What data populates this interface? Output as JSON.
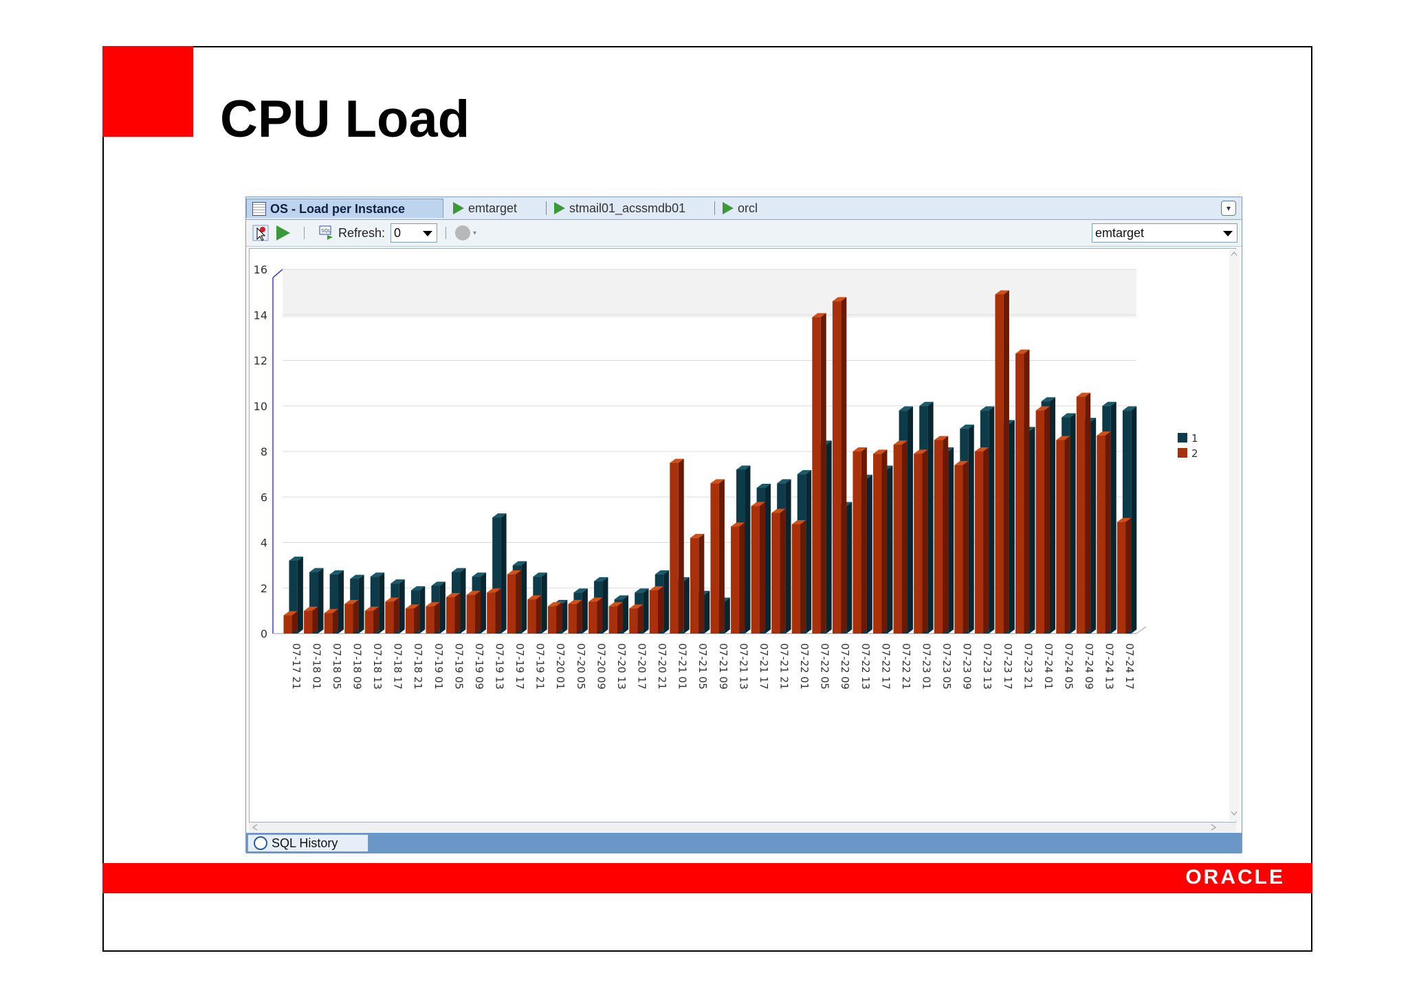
{
  "slide": {
    "title": "CPU Load",
    "brand": "ORACLE"
  },
  "tabs": [
    {
      "label": "OS - Load per Instance",
      "icon": "grid-icon",
      "active": true
    },
    {
      "label": "emtarget",
      "icon": "play-icon",
      "active": false
    },
    {
      "label": "stmail01_acssmdb01",
      "icon": "play-icon",
      "active": false
    },
    {
      "label": "orcl",
      "icon": "play-icon",
      "active": false
    }
  ],
  "toolbar": {
    "refresh_label": "Refresh:",
    "refresh_value": "0",
    "target_value": "emtarget"
  },
  "bottom_tab": {
    "label": "SQL History"
  },
  "colors": {
    "series1": "#0d3b4a",
    "series2": "#a8300a",
    "accent": "#ff0000"
  },
  "chart_data": {
    "type": "bar",
    "ylim": [
      0,
      16
    ],
    "yticks": [
      0,
      2,
      4,
      6,
      8,
      10,
      12,
      14,
      16
    ],
    "xtick_labels": [
      "07-17 21",
      "07-18 01",
      "07-18 05",
      "07-18 09",
      "07-18 13",
      "07-18 17",
      "07-18 21",
      "07-19 01",
      "07-19 05",
      "07-19 09",
      "07-19 13",
      "07-19 17",
      "07-19 21",
      "07-20 01",
      "07-20 05",
      "07-20 09",
      "07-20 13",
      "07-20 17",
      "07-20 21",
      "07-21 01",
      "07-21 05",
      "07-21 09",
      "07-21 13",
      "07-21 17",
      "07-21 21",
      "07-22 01",
      "07-22 05",
      "07-22 09",
      "07-22 13",
      "07-22 17",
      "07-22 21",
      "07-23 01",
      "07-23 05",
      "07-23 09",
      "07-23 13",
      "07-23 17",
      "07-23 21",
      "07-24 01",
      "07-24 05",
      "07-24 09",
      "07-24 13",
      "07-24 17"
    ],
    "legend": [
      "1",
      "2"
    ],
    "legend_position": "right",
    "grid": true,
    "series": [
      {
        "name": "1",
        "values": [
          3.2,
          2.7,
          2.6,
          2.4,
          2.5,
          2.2,
          1.9,
          2.1,
          2.7,
          2.5,
          5.1,
          3.0,
          2.5,
          1.3,
          1.8,
          2.3,
          1.5,
          1.8,
          2.6,
          2.3,
          1.7,
          1.4,
          7.2,
          6.4,
          6.6,
          7.0,
          8.3,
          5.6,
          6.8,
          7.2,
          9.8,
          10.0,
          8.0,
          9.0,
          9.8,
          9.2,
          8.9,
          10.2,
          9.5,
          9.3,
          10.0,
          9.8
        ]
      },
      {
        "name": "2",
        "values": [
          0.8,
          1.0,
          0.9,
          1.3,
          1.0,
          1.4,
          1.1,
          1.2,
          1.6,
          1.7,
          1.8,
          2.6,
          1.5,
          1.2,
          1.3,
          1.4,
          1.2,
          1.1,
          1.9,
          7.5,
          4.2,
          6.6,
          4.7,
          5.6,
          5.3,
          4.8,
          13.9,
          14.6,
          8.0,
          7.9,
          8.3,
          7.9,
          8.5,
          7.4,
          8.0,
          14.9,
          12.3,
          9.8,
          8.5,
          10.4,
          8.7,
          4.9
        ]
      }
    ]
  }
}
